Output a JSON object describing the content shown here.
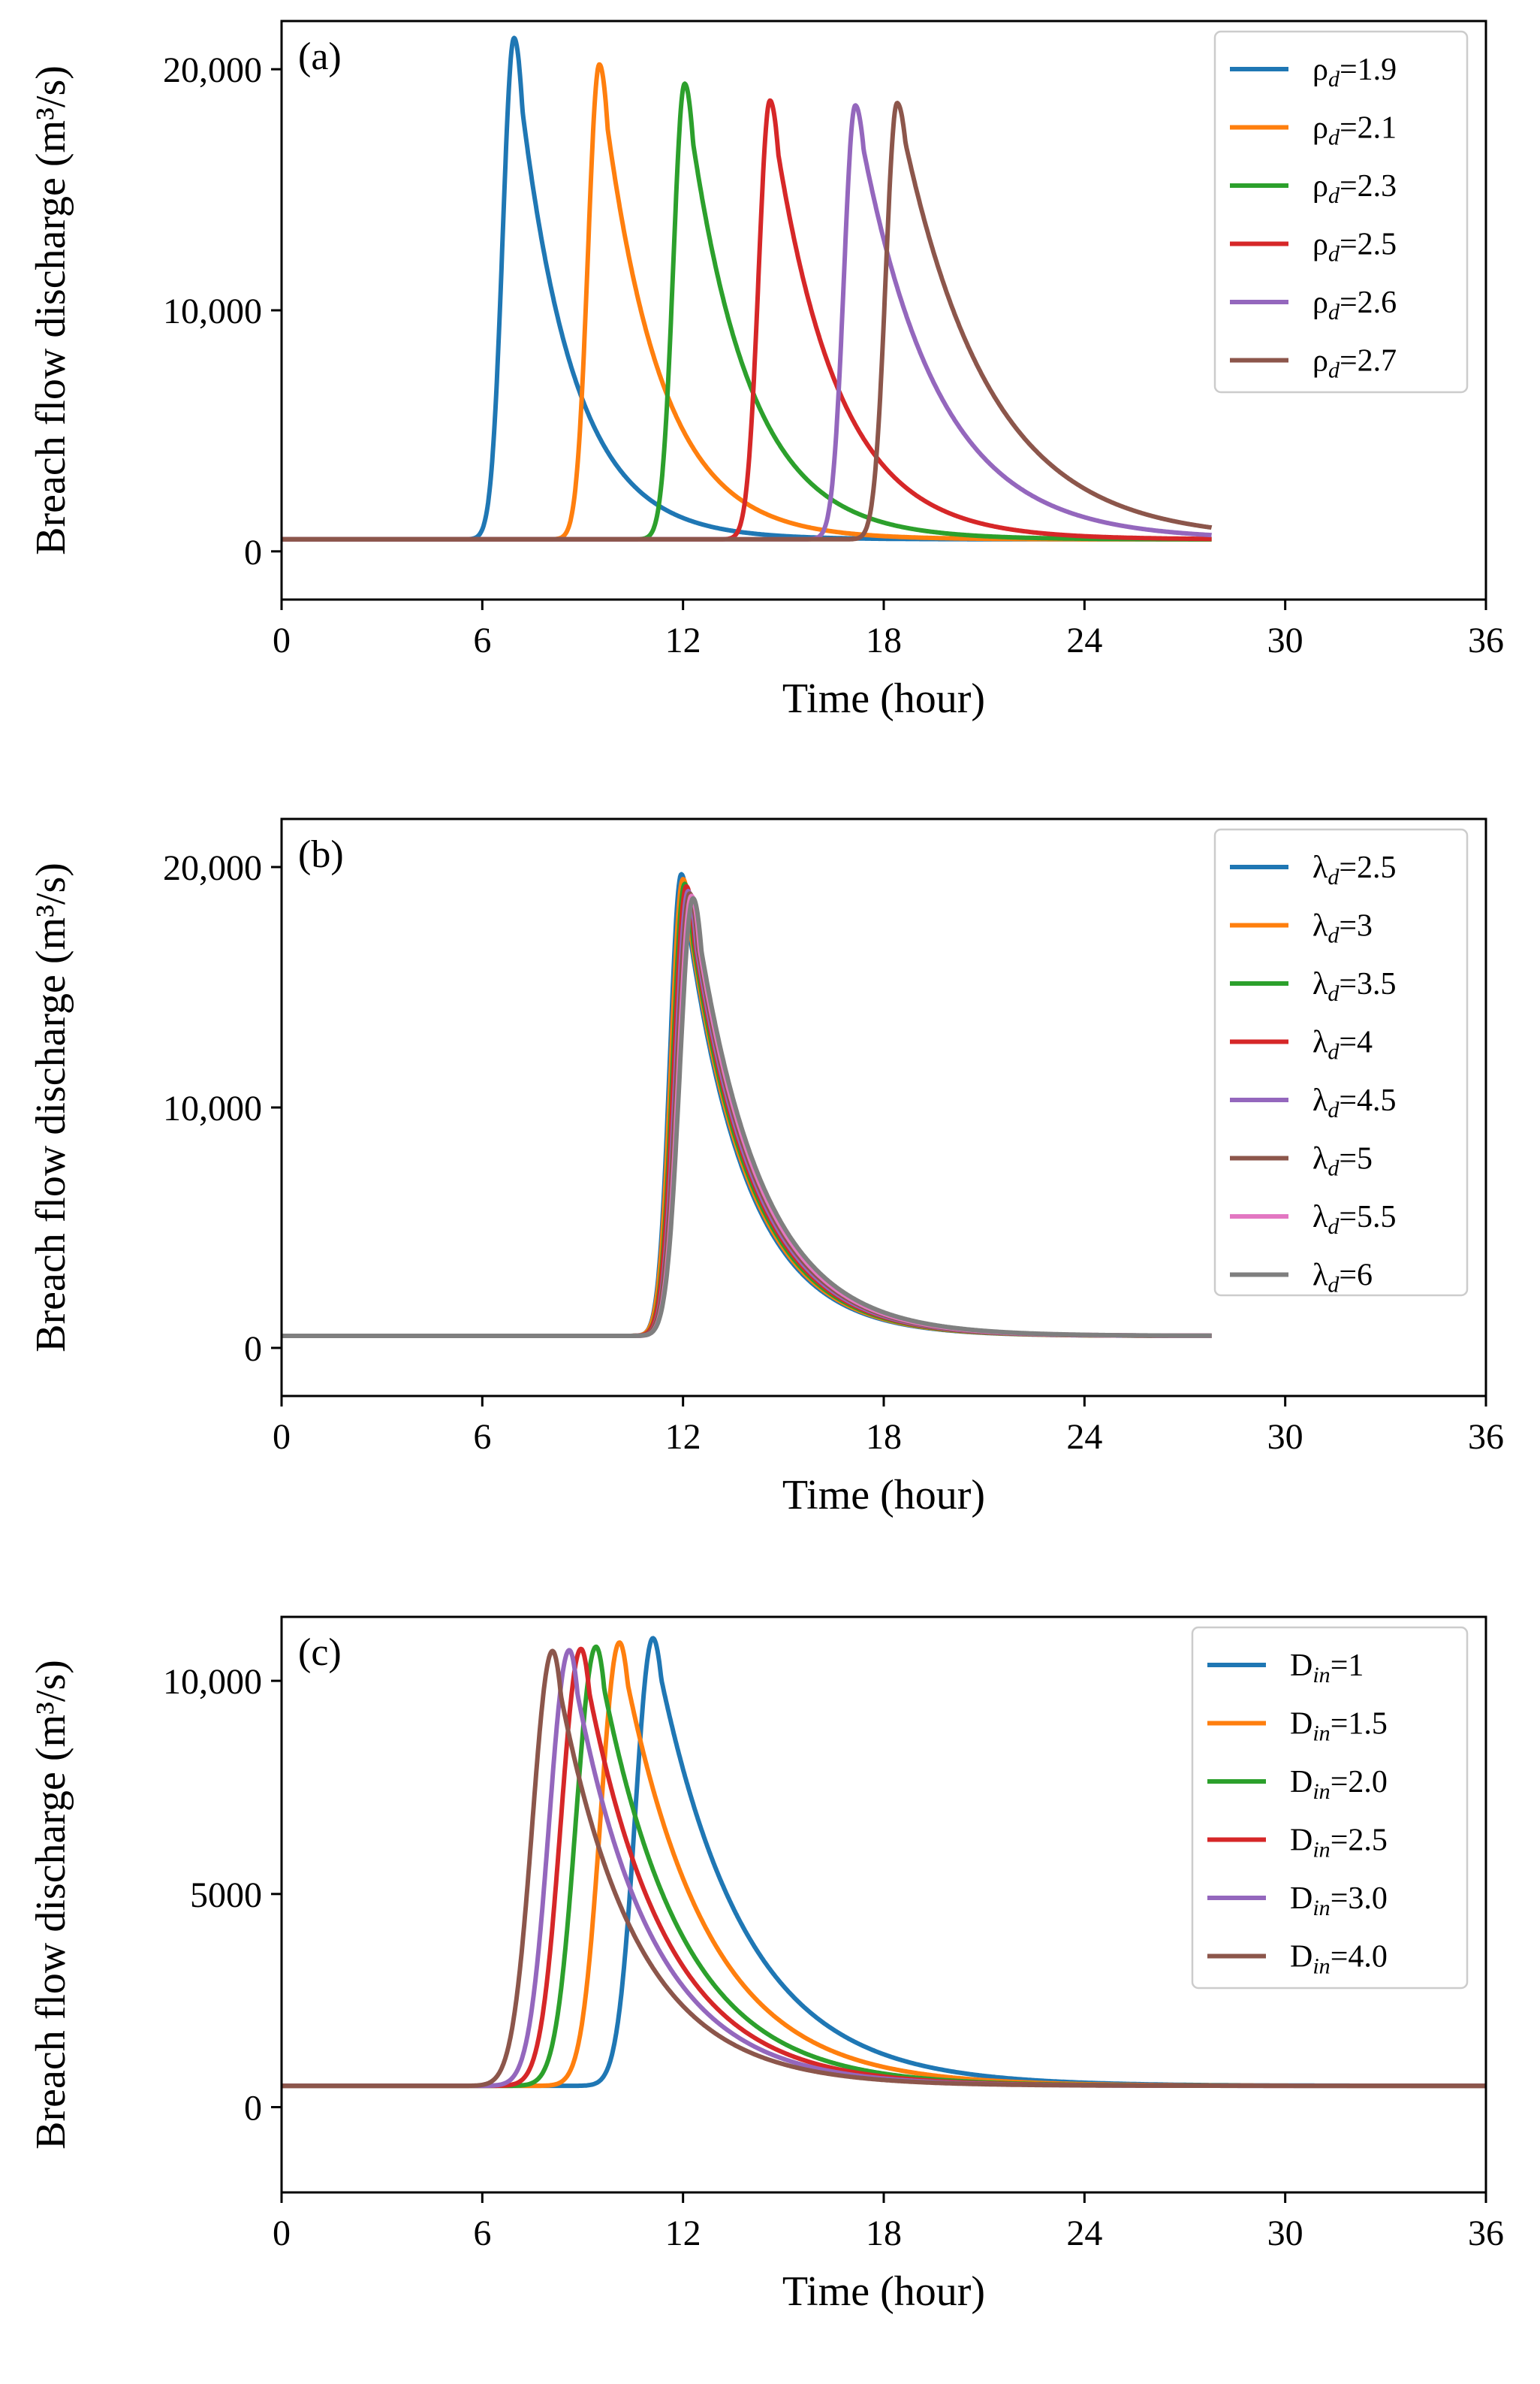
{
  "chart_data": [
    {
      "type": "line",
      "panel_label": "(a)",
      "xlabel": "Time (hour)",
      "ylabel": "Breach flow discharge (m³/s)",
      "xlim": [
        0,
        36
      ],
      "ylim": [
        -2000,
        22000
      ],
      "xticks": [
        0,
        6,
        12,
        18,
        24,
        30,
        36
      ],
      "xtick_labels": [
        "0",
        "6",
        "12",
        "18",
        "24",
        "30",
        "36"
      ],
      "yticks": [
        0,
        10000,
        20000
      ],
      "ytick_labels": [
        "0",
        "10,000",
        "20,000"
      ],
      "legend_position": "top-right",
      "series": [
        {
          "name": "ρd=1.9",
          "legend_base": "ρ",
          "legend_sub": "d",
          "legend_rest": "=1.9",
          "color": "#1f77b4",
          "peak_time": 6.95,
          "peak": 21300,
          "rise": 0.48,
          "decay": 1.6,
          "end": 27.8
        },
        {
          "name": "ρd=2.1",
          "legend_base": "ρ",
          "legend_sub": "d",
          "legend_rest": "=2.1",
          "color": "#ff7f0e",
          "peak_time": 9.5,
          "peak": 20200,
          "rise": 0.48,
          "decay": 1.7,
          "end": 27.8
        },
        {
          "name": "ρd=2.3",
          "legend_base": "ρ",
          "legend_sub": "d",
          "legend_rest": "=2.3",
          "color": "#2ca02c",
          "peak_time": 12.05,
          "peak": 19400,
          "rise": 0.48,
          "decay": 1.8,
          "end": 27.8
        },
        {
          "name": "ρd=2.5",
          "legend_base": "ρ",
          "legend_sub": "d",
          "legend_rest": "=2.5",
          "color": "#d62728",
          "peak_time": 14.6,
          "peak": 18700,
          "rise": 0.48,
          "decay": 1.9,
          "end": 27.8
        },
        {
          "name": "ρd=2.6",
          "legend_base": "ρ",
          "legend_sub": "d",
          "legend_rest": "=2.6",
          "color": "#9467bd",
          "peak_time": 17.15,
          "peak": 18500,
          "rise": 0.48,
          "decay": 2.3,
          "end": 27.8
        },
        {
          "name": "ρd=2.7",
          "legend_base": "ρ",
          "legend_sub": "d",
          "legend_rest": "=2.7",
          "color": "#8c564b",
          "peak_time": 18.4,
          "peak": 18600,
          "rise": 0.48,
          "decay": 2.6,
          "end": 27.8
        }
      ]
    },
    {
      "type": "line",
      "panel_label": "(b)",
      "xlabel": "Time (hour)",
      "ylabel": "Breach flow discharge (m³/s)",
      "xlim": [
        0,
        36
      ],
      "ylim": [
        -2000,
        22000
      ],
      "xticks": [
        0,
        6,
        12,
        18,
        24,
        30,
        36
      ],
      "xtick_labels": [
        "0",
        "6",
        "12",
        "18",
        "24",
        "30",
        "36"
      ],
      "yticks": [
        0,
        10000,
        20000
      ],
      "ytick_labels": [
        "0",
        "10,000",
        "20,000"
      ],
      "legend_position": "top-right",
      "series": [
        {
          "name": "λd=2.5",
          "legend_base": "λ",
          "legend_sub": "d",
          "legend_rest": "=2.5",
          "color": "#1f77b4",
          "peak_time": 11.95,
          "peak": 19700,
          "rise": 0.48,
          "decay": 1.8,
          "end": 27.8
        },
        {
          "name": "λd=3",
          "legend_base": "λ",
          "legend_sub": "d",
          "legend_rest": "=3",
          "color": "#ff7f0e",
          "peak_time": 12.0,
          "peak": 19500,
          "rise": 0.5,
          "decay": 1.82,
          "end": 27.8
        },
        {
          "name": "λd=3.5",
          "legend_base": "λ",
          "legend_sub": "d",
          "legend_rest": "=3.5",
          "color": "#2ca02c",
          "peak_time": 12.05,
          "peak": 19300,
          "rise": 0.5,
          "decay": 1.84,
          "end": 27.8
        },
        {
          "name": "λd=4",
          "legend_base": "λ",
          "legend_sub": "d",
          "legend_rest": "=4",
          "color": "#d62728",
          "peak_time": 12.1,
          "peak": 19200,
          "rise": 0.52,
          "decay": 1.86,
          "end": 27.8
        },
        {
          "name": "λd=4.5",
          "legend_base": "λ",
          "legend_sub": "d",
          "legend_rest": "=4.5",
          "color": "#9467bd",
          "peak_time": 12.15,
          "peak": 19000,
          "rise": 0.52,
          "decay": 1.88,
          "end": 27.8
        },
        {
          "name": "λd=5",
          "legend_base": "λ",
          "legend_sub": "d",
          "legend_rest": "=5",
          "color": "#8c564b",
          "peak_time": 12.2,
          "peak": 18900,
          "rise": 0.54,
          "decay": 1.9,
          "end": 27.8
        },
        {
          "name": "λd=5.5",
          "legend_base": "λ",
          "legend_sub": "d",
          "legend_rest": "=5.5",
          "color": "#e377c2",
          "peak_time": 12.25,
          "peak": 18800,
          "rise": 0.54,
          "decay": 1.92,
          "end": 27.8
        },
        {
          "name": "λd=6",
          "legend_base": "λ",
          "legend_sub": "d",
          "legend_rest": "=6",
          "color": "#7f7f7f",
          "peak_time": 12.3,
          "peak": 18700,
          "rise": 0.56,
          "decay": 1.95,
          "end": 27.8
        }
      ]
    },
    {
      "type": "line",
      "panel_label": "(c)",
      "xlabel": "Time (hour)",
      "ylabel": "Breach flow discharge (m³/s)",
      "xlim": [
        0,
        36
      ],
      "ylim": [
        -2000,
        11500
      ],
      "xticks": [
        0,
        6,
        12,
        18,
        24,
        30,
        36
      ],
      "xtick_labels": [
        "0",
        "6",
        "12",
        "18",
        "24",
        "30",
        "36"
      ],
      "yticks": [
        0,
        5000,
        10000
      ],
      "ytick_labels": [
        "0",
        "5000",
        "10,000"
      ],
      "legend_position": "top-right",
      "series": [
        {
          "name": "Din=1",
          "legend_base": "D",
          "legend_sub": "in",
          "legend_rest": "=1",
          "color": "#1f77b4",
          "peak_time": 11.1,
          "peak": 11000,
          "rise": 0.75,
          "decay": 2.6,
          "end": 36
        },
        {
          "name": "Din=1.5",
          "legend_base": "D",
          "legend_sub": "in",
          "legend_rest": "=1.5",
          "color": "#ff7f0e",
          "peak_time": 10.1,
          "peak": 10900,
          "rise": 0.8,
          "decay": 2.5,
          "end": 36
        },
        {
          "name": "Din=2.0",
          "legend_base": "D",
          "legend_sub": "in",
          "legend_rest": "=2.0",
          "color": "#2ca02c",
          "peak_time": 9.4,
          "peak": 10800,
          "rise": 0.85,
          "decay": 2.4,
          "end": 36
        },
        {
          "name": "Din=2.5",
          "legend_base": "D",
          "legend_sub": "in",
          "legend_rest": "=2.5",
          "color": "#d62728",
          "peak_time": 8.95,
          "peak": 10750,
          "rise": 0.85,
          "decay": 2.35,
          "end": 36
        },
        {
          "name": "Din=3.0",
          "legend_base": "D",
          "legend_sub": "in",
          "legend_rest": "=3.0",
          "color": "#9467bd",
          "peak_time": 8.6,
          "peak": 10720,
          "rise": 0.85,
          "decay": 2.3,
          "end": 36
        },
        {
          "name": "Din=4.0",
          "legend_base": "D",
          "legend_sub": "in",
          "legend_rest": "=4.0",
          "color": "#8c564b",
          "peak_time": 8.1,
          "peak": 10700,
          "rise": 0.85,
          "decay": 2.3,
          "end": 36
        }
      ]
    }
  ]
}
